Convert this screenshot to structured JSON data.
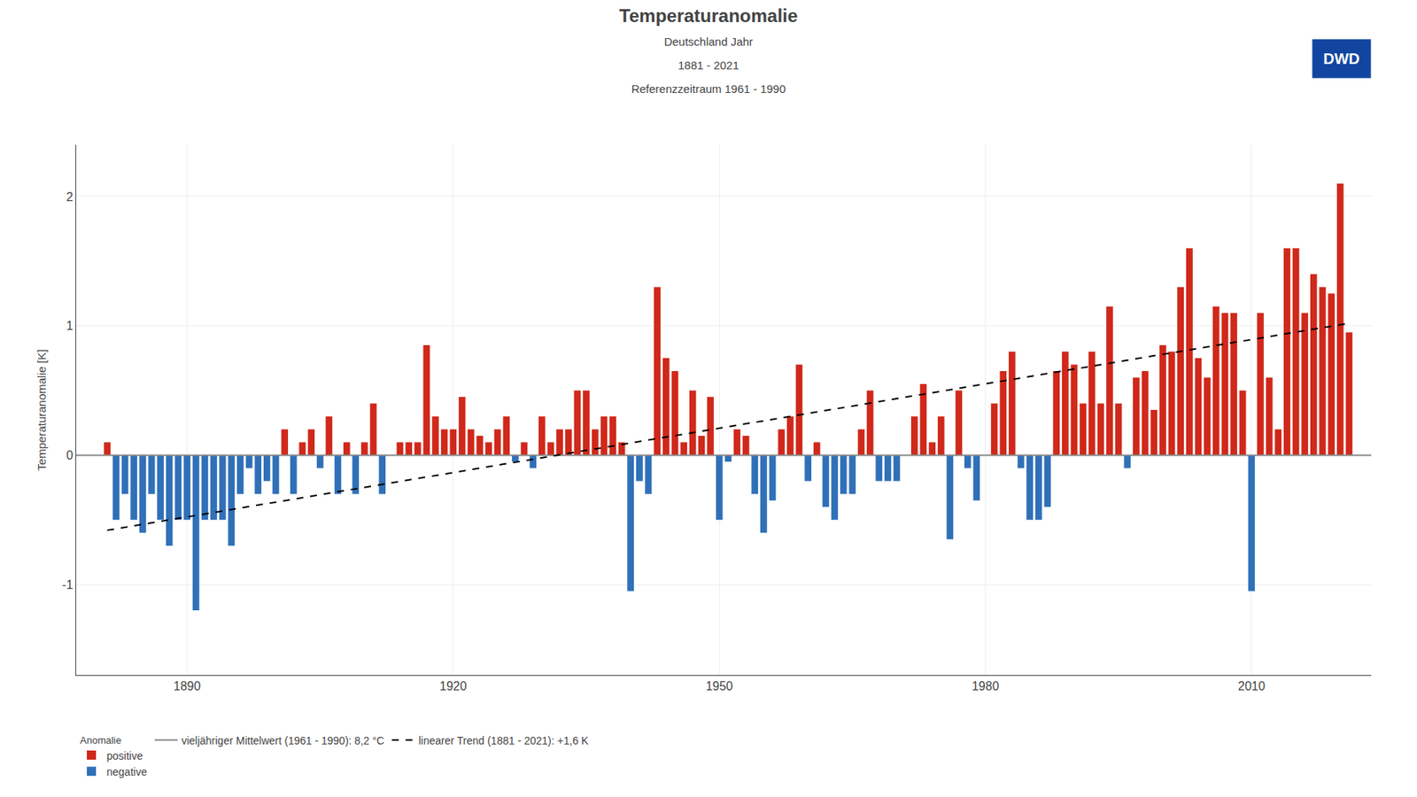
{
  "chart_data": {
    "type": "bar",
    "title": "Temperaturanomalie",
    "subtitle": [
      "Deutschland Jahr",
      "1881 - 2021",
      "Referenzzeitraum 1961 - 1990"
    ],
    "ylabel": "Temperaturanomalie [K]",
    "x": [
      1881,
      1882,
      1883,
      1884,
      1885,
      1886,
      1887,
      1888,
      1889,
      1890,
      1891,
      1892,
      1893,
      1894,
      1895,
      1896,
      1897,
      1898,
      1899,
      1900,
      1901,
      1902,
      1903,
      1904,
      1905,
      1906,
      1907,
      1908,
      1909,
      1910,
      1911,
      1912,
      1913,
      1914,
      1915,
      1916,
      1917,
      1918,
      1919,
      1920,
      1921,
      1922,
      1923,
      1924,
      1925,
      1926,
      1927,
      1928,
      1929,
      1930,
      1931,
      1932,
      1933,
      1934,
      1935,
      1936,
      1937,
      1938,
      1939,
      1940,
      1941,
      1942,
      1943,
      1944,
      1945,
      1946,
      1947,
      1948,
      1949,
      1950,
      1951,
      1952,
      1953,
      1954,
      1955,
      1956,
      1957,
      1958,
      1959,
      1960,
      1961,
      1962,
      1963,
      1964,
      1965,
      1966,
      1967,
      1968,
      1969,
      1970,
      1971,
      1972,
      1973,
      1974,
      1975,
      1976,
      1977,
      1978,
      1979,
      1980,
      1981,
      1982,
      1983,
      1984,
      1985,
      1986,
      1987,
      1988,
      1989,
      1990,
      1991,
      1992,
      1993,
      1994,
      1995,
      1996,
      1997,
      1998,
      1999,
      2000,
      2001,
      2002,
      2003,
      2004,
      2005,
      2006,
      2007,
      2008,
      2009,
      2010,
      2011,
      2012,
      2013,
      2014,
      2015,
      2016,
      2017,
      2018,
      2019,
      2020,
      2021
    ],
    "legend_title": "Anomalie",
    "series": [
      {
        "name": "positive",
        "type": "bar",
        "color": "#D0281A",
        "values": [
          0.1,
          null,
          null,
          null,
          null,
          null,
          null,
          null,
          null,
          null,
          null,
          null,
          null,
          null,
          null,
          null,
          null,
          null,
          null,
          null,
          0.2,
          null,
          0.1,
          0.2,
          null,
          0.3,
          null,
          0.1,
          null,
          0.1,
          0.4,
          null,
          0.0,
          0.1,
          0.1,
          0.1,
          0.85,
          0.3,
          0.2,
          0.2,
          0.45,
          0.2,
          0.15,
          0.1,
          0.2,
          0.3,
          null,
          0.1,
          null,
          0.3,
          0.1,
          0.2,
          0.2,
          0.5,
          0.5,
          0.2,
          0.3,
          0.3,
          0.1,
          null,
          null,
          null,
          1.3,
          0.75,
          0.65,
          0.1,
          0.5,
          0.15,
          0.45,
          null,
          null,
          0.2,
          0.15,
          null,
          null,
          null,
          0.2,
          0.3,
          0.7,
          null,
          0.1,
          null,
          null,
          null,
          null,
          0.2,
          0.5,
          null,
          null,
          null,
          0.0,
          0.3,
          0.55,
          0.1,
          0.3,
          null,
          0.5,
          null,
          null,
          0.0,
          0.4,
          0.65,
          0.8,
          null,
          null,
          null,
          null,
          0.65,
          0.8,
          0.7,
          0.4,
          0.8,
          0.4,
          1.15,
          0.4,
          null,
          0.6,
          0.65,
          0.35,
          0.85,
          0.8,
          1.3,
          1.6,
          0.75,
          0.6,
          1.15,
          1.1,
          1.1,
          0.5,
          null,
          1.1,
          0.6,
          0.2,
          1.6,
          1.6,
          1.1,
          1.4,
          1.3,
          1.25,
          2.1,
          0.95
        ]
      },
      {
        "name": "negative",
        "type": "bar",
        "color": "#3070B8",
        "values": [
          null,
          -0.5,
          -0.3,
          -0.5,
          -0.6,
          -0.3,
          -0.5,
          -0.7,
          -0.5,
          -0.5,
          -1.2,
          -0.5,
          -0.5,
          -0.5,
          -0.7,
          -0.3,
          -0.1,
          -0.3,
          -0.2,
          -0.3,
          null,
          -0.3,
          null,
          null,
          -0.1,
          null,
          -0.3,
          null,
          -0.3,
          null,
          null,
          -0.3,
          null,
          null,
          null,
          null,
          null,
          null,
          null,
          null,
          null,
          null,
          null,
          null,
          null,
          null,
          -0.05,
          null,
          -0.1,
          null,
          null,
          null,
          null,
          null,
          null,
          null,
          null,
          null,
          null,
          -1.05,
          -0.2,
          -0.3,
          null,
          null,
          null,
          null,
          null,
          null,
          null,
          -0.5,
          -0.05,
          null,
          null,
          -0.3,
          -0.6,
          -0.35,
          null,
          null,
          null,
          -0.2,
          null,
          -0.4,
          -0.5,
          -0.3,
          -0.3,
          null,
          null,
          -0.2,
          -0.2,
          -0.2,
          null,
          null,
          null,
          null,
          null,
          -0.65,
          null,
          -0.1,
          -0.35,
          null,
          null,
          null,
          null,
          -0.1,
          -0.5,
          -0.5,
          -0.4,
          null,
          null,
          null,
          null,
          null,
          null,
          null,
          null,
          -0.1,
          null,
          null,
          null,
          null,
          null,
          null,
          null,
          null,
          null,
          null,
          null,
          null,
          null,
          -1.05,
          null,
          null,
          null,
          null,
          null,
          null,
          null,
          null,
          null,
          null,
          null
        ]
      },
      {
        "name": "vieljähriger Mittelwert (1961 - 1990): 8,2 °C",
        "type": "line",
        "color": "#888888",
        "line_style": "solid",
        "x": [
          1877.5,
          2023.5
        ],
        "values": [
          0,
          0
        ]
      },
      {
        "name": "linearer Trend (1881 - 2021): +1,6 K",
        "type": "line",
        "color": "#000000",
        "line_style": "dashed",
        "x": [
          1881,
          2021
        ],
        "values": [
          -0.58,
          1.02
        ]
      }
    ],
    "xlim": [
      1877.5,
      2023.5
    ],
    "xticks": [
      1890,
      1920,
      1950,
      1980,
      2010
    ],
    "ylim": [
      -1.7,
      2.4
    ],
    "yticks": [
      -1,
      0,
      1,
      2
    ],
    "grid": true,
    "legend": "bottom",
    "annotations": [
      {
        "text": "DWD",
        "color": "#1145a0"
      }
    ]
  }
}
